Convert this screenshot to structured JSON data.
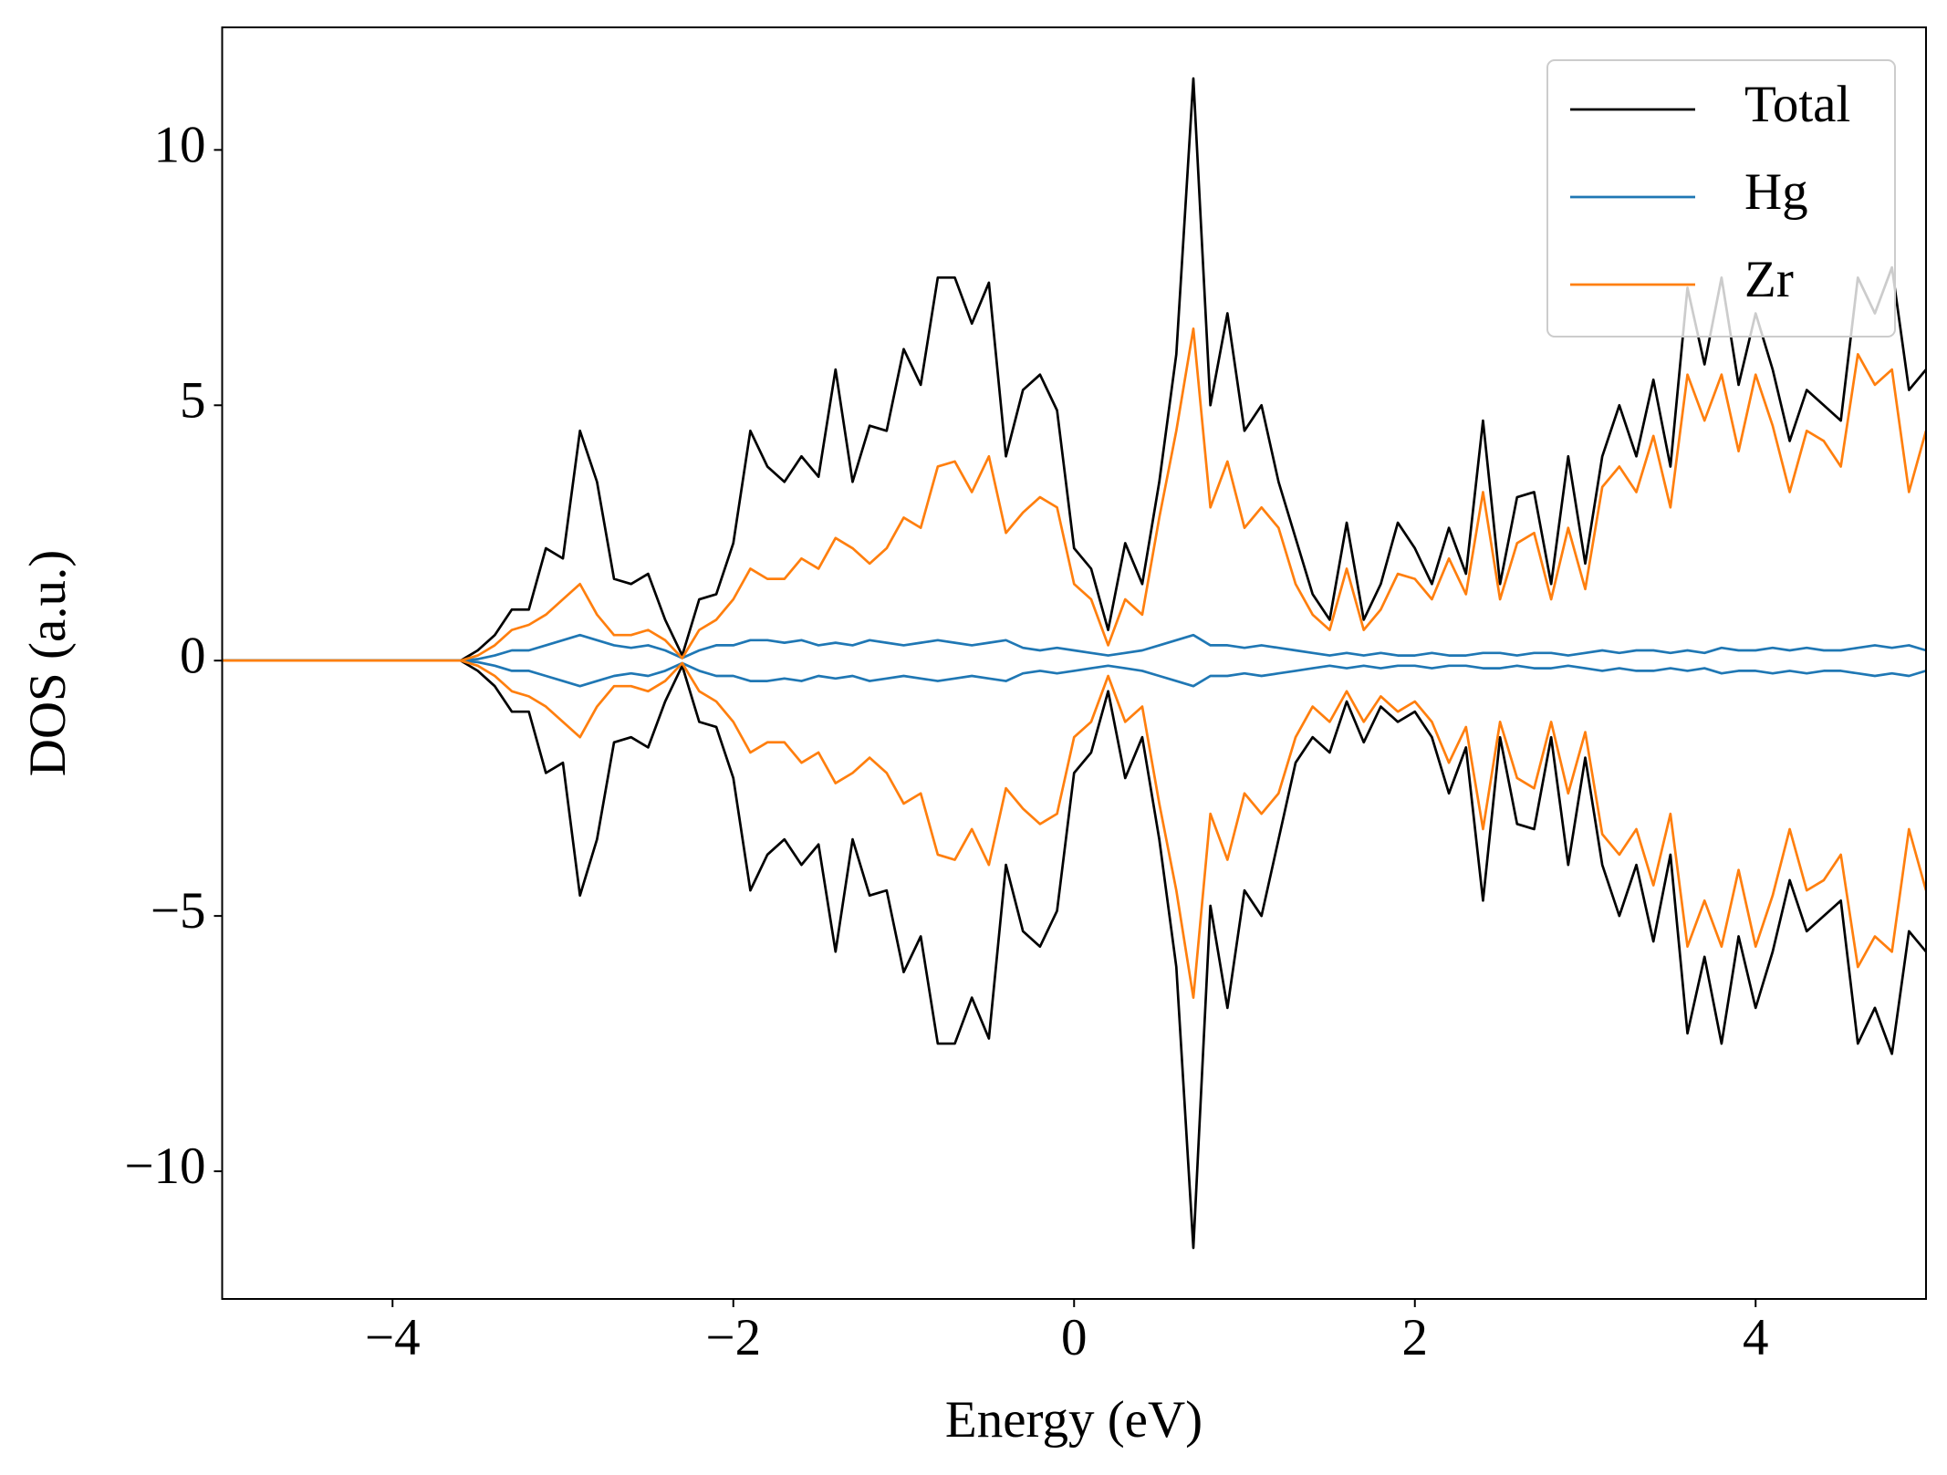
{
  "chart_data": {
    "type": "line",
    "xlabel": "Energy (eV)",
    "ylabel": "DOS (a.u.)",
    "xlim": [
      -5,
      5
    ],
    "ylim": [
      -12.5,
      12.4
    ],
    "xticks": [
      {
        "value": -4,
        "label": "−4"
      },
      {
        "value": -2,
        "label": "−2"
      },
      0,
      2,
      4
    ],
    "yticks": [
      {
        "value": -10,
        "label": "−10"
      },
      {
        "value": -5,
        "label": "−5"
      },
      0,
      5,
      10
    ],
    "legend": "upper right",
    "x": [
      -5.0,
      -4.9,
      -4.8,
      -4.7,
      -4.6,
      -4.5,
      -4.4,
      -4.3,
      -4.2,
      -4.1,
      -4.0,
      -3.9,
      -3.8,
      -3.7,
      -3.6,
      -3.5,
      -3.4,
      -3.3,
      -3.2,
      -3.1,
      -3.0,
      -2.9,
      -2.8,
      -2.7,
      -2.6,
      -2.5,
      -2.4,
      -2.3,
      -2.2,
      -2.1,
      -2.0,
      -1.9,
      -1.8,
      -1.7,
      -1.6,
      -1.5,
      -1.4,
      -1.3,
      -1.2,
      -1.1,
      -1.0,
      -0.9,
      -0.8,
      -0.7,
      -0.6,
      -0.5,
      -0.4,
      -0.3,
      -0.2,
      -0.1,
      0.0,
      0.1,
      0.2,
      0.3,
      0.4,
      0.5,
      0.6,
      0.7,
      0.8,
      0.9,
      1.0,
      1.1,
      1.2,
      1.3,
      1.4,
      1.5,
      1.6,
      1.7,
      1.8,
      1.9,
      2.0,
      2.1,
      2.2,
      2.3,
      2.4,
      2.5,
      2.6,
      2.7,
      2.8,
      2.9,
      3.0,
      3.1,
      3.2,
      3.3,
      3.4,
      3.5,
      3.6,
      3.7,
      3.8,
      3.9,
      4.0,
      4.1,
      4.2,
      4.3,
      4.4,
      4.5,
      4.6,
      4.7,
      4.8,
      4.9,
      5.0
    ],
    "series": [
      {
        "name": "Total",
        "color": "#000000",
        "values": [
          0,
          0,
          0,
          0,
          0,
          0,
          0,
          0,
          0,
          0,
          0,
          0,
          0,
          0,
          0,
          0.2,
          0.5,
          1.0,
          1.0,
          2.2,
          2.0,
          4.5,
          3.5,
          1.6,
          1.5,
          1.7,
          0.8,
          0.1,
          1.2,
          1.3,
          2.3,
          4.5,
          3.8,
          3.5,
          4.0,
          3.6,
          5.7,
          3.5,
          4.6,
          4.5,
          6.1,
          5.4,
          7.5,
          7.5,
          6.6,
          7.4,
          4.0,
          5.3,
          5.6,
          4.9,
          2.2,
          1.8,
          0.6,
          2.3,
          1.5,
          3.5,
          6.0,
          11.4,
          5.0,
          6.8,
          4.5,
          5.0,
          3.5,
          2.4,
          1.3,
          0.8,
          2.7,
          0.8,
          1.5,
          2.7,
          2.2,
          1.5,
          2.6,
          1.7,
          4.7,
          1.5,
          3.2,
          3.3,
          1.5,
          4.0,
          1.9,
          4.0,
          5.0,
          4.0,
          5.5,
          3.8,
          7.3,
          5.8,
          7.5,
          5.4,
          6.8,
          5.7,
          4.3,
          5.3,
          5.0,
          4.7,
          7.5,
          6.8,
          7.7,
          5.3,
          5.7
        ],
        "values_down": [
          0,
          0,
          0,
          0,
          0,
          0,
          0,
          0,
          0,
          0,
          0,
          0,
          0,
          0,
          0,
          -0.2,
          -0.5,
          -1.0,
          -1.0,
          -2.2,
          -2.0,
          -4.6,
          -3.5,
          -1.6,
          -1.5,
          -1.7,
          -0.8,
          -0.1,
          -1.2,
          -1.3,
          -2.3,
          -4.5,
          -3.8,
          -3.5,
          -4.0,
          -3.6,
          -5.7,
          -3.5,
          -4.6,
          -4.5,
          -6.1,
          -5.4,
          -7.5,
          -7.5,
          -6.6,
          -7.4,
          -4.0,
          -5.3,
          -5.6,
          -4.9,
          -2.2,
          -1.8,
          -0.6,
          -2.3,
          -1.5,
          -3.5,
          -6.0,
          -11.5,
          -4.8,
          -6.8,
          -4.5,
          -5.0,
          -3.5,
          -2.0,
          -1.5,
          -1.8,
          -0.8,
          -1.6,
          -0.9,
          -1.2,
          -1.0,
          -1.5,
          -2.6,
          -1.7,
          -4.7,
          -1.5,
          -3.2,
          -3.3,
          -1.5,
          -4.0,
          -1.9,
          -4.0,
          -5.0,
          -4.0,
          -5.5,
          -3.8,
          -7.3,
          -5.8,
          -7.5,
          -5.4,
          -6.8,
          -5.7,
          -4.3,
          -5.3,
          -5.0,
          -4.7,
          -7.5,
          -6.8,
          -7.7,
          -5.3,
          -5.7
        ]
      },
      {
        "name": "Hg",
        "color": "#1f77b4",
        "values": [
          0,
          0,
          0,
          0,
          0,
          0,
          0,
          0,
          0,
          0,
          0,
          0,
          0,
          0,
          0,
          0.03,
          0.1,
          0.2,
          0.2,
          0.3,
          0.4,
          0.5,
          0.4,
          0.3,
          0.25,
          0.3,
          0.2,
          0.05,
          0.2,
          0.3,
          0.3,
          0.4,
          0.4,
          0.35,
          0.4,
          0.3,
          0.35,
          0.3,
          0.4,
          0.35,
          0.3,
          0.35,
          0.4,
          0.35,
          0.3,
          0.35,
          0.4,
          0.25,
          0.2,
          0.25,
          0.2,
          0.15,
          0.1,
          0.15,
          0.2,
          0.3,
          0.4,
          0.5,
          0.3,
          0.3,
          0.25,
          0.3,
          0.25,
          0.2,
          0.15,
          0.1,
          0.15,
          0.1,
          0.15,
          0.1,
          0.1,
          0.15,
          0.1,
          0.1,
          0.15,
          0.15,
          0.1,
          0.15,
          0.15,
          0.1,
          0.15,
          0.2,
          0.15,
          0.2,
          0.2,
          0.15,
          0.2,
          0.15,
          0.25,
          0.2,
          0.2,
          0.25,
          0.2,
          0.25,
          0.2,
          0.2,
          0.25,
          0.3,
          0.25,
          0.3,
          0.2
        ],
        "values_down": [
          0,
          0,
          0,
          0,
          0,
          0,
          0,
          0,
          0,
          0,
          0,
          0,
          0,
          0,
          0,
          -0.03,
          -0.1,
          -0.2,
          -0.2,
          -0.3,
          -0.4,
          -0.5,
          -0.4,
          -0.3,
          -0.25,
          -0.3,
          -0.2,
          -0.05,
          -0.2,
          -0.3,
          -0.3,
          -0.4,
          -0.4,
          -0.35,
          -0.4,
          -0.3,
          -0.35,
          -0.3,
          -0.4,
          -0.35,
          -0.3,
          -0.35,
          -0.4,
          -0.35,
          -0.3,
          -0.35,
          -0.4,
          -0.25,
          -0.2,
          -0.25,
          -0.2,
          -0.15,
          -0.1,
          -0.15,
          -0.2,
          -0.3,
          -0.4,
          -0.5,
          -0.3,
          -0.3,
          -0.25,
          -0.3,
          -0.25,
          -0.2,
          -0.15,
          -0.1,
          -0.15,
          -0.1,
          -0.15,
          -0.1,
          -0.1,
          -0.15,
          -0.1,
          -0.1,
          -0.15,
          -0.15,
          -0.1,
          -0.15,
          -0.15,
          -0.1,
          -0.15,
          -0.2,
          -0.15,
          -0.2,
          -0.2,
          -0.15,
          -0.2,
          -0.15,
          -0.25,
          -0.2,
          -0.2,
          -0.25,
          -0.2,
          -0.25,
          -0.2,
          -0.2,
          -0.25,
          -0.3,
          -0.25,
          -0.3,
          -0.2
        ]
      },
      {
        "name": "Zr",
        "color": "#ff7f0e",
        "values": [
          0,
          0,
          0,
          0,
          0,
          0,
          0,
          0,
          0,
          0,
          0,
          0,
          0,
          0,
          0,
          0.1,
          0.3,
          0.6,
          0.7,
          0.9,
          1.2,
          1.5,
          0.9,
          0.5,
          0.5,
          0.6,
          0.4,
          0.05,
          0.6,
          0.8,
          1.2,
          1.8,
          1.6,
          1.6,
          2.0,
          1.8,
          2.4,
          2.2,
          1.9,
          2.2,
          2.8,
          2.6,
          3.8,
          3.9,
          3.3,
          4.0,
          2.5,
          2.9,
          3.2,
          3.0,
          1.5,
          1.2,
          0.3,
          1.2,
          0.9,
          2.8,
          4.5,
          6.5,
          3.0,
          3.9,
          2.6,
          3.0,
          2.6,
          1.5,
          0.9,
          0.6,
          1.8,
          0.6,
          1.0,
          1.7,
          1.6,
          1.2,
          2.0,
          1.3,
          3.3,
          1.2,
          2.3,
          2.5,
          1.2,
          2.6,
          1.4,
          3.4,
          3.8,
          3.3,
          4.4,
          3.0,
          5.6,
          4.7,
          5.6,
          4.1,
          5.6,
          4.6,
          3.3,
          4.5,
          4.3,
          3.8,
          6.0,
          5.4,
          5.7,
          3.3,
          4.5
        ],
        "values_down": [
          0,
          0,
          0,
          0,
          0,
          0,
          0,
          0,
          0,
          0,
          0,
          0,
          0,
          0,
          0,
          -0.1,
          -0.3,
          -0.6,
          -0.7,
          -0.9,
          -1.2,
          -1.5,
          -0.9,
          -0.5,
          -0.5,
          -0.6,
          -0.4,
          -0.05,
          -0.6,
          -0.8,
          -1.2,
          -1.8,
          -1.6,
          -1.6,
          -2.0,
          -1.8,
          -2.4,
          -2.2,
          -1.9,
          -2.2,
          -2.8,
          -2.6,
          -3.8,
          -3.9,
          -3.3,
          -4.0,
          -2.5,
          -2.9,
          -3.2,
          -3.0,
          -1.5,
          -1.2,
          -0.3,
          -1.2,
          -0.9,
          -2.8,
          -4.5,
          -6.6,
          -3.0,
          -3.9,
          -2.6,
          -3.0,
          -2.6,
          -1.5,
          -0.9,
          -1.2,
          -0.6,
          -1.2,
          -0.7,
          -1.0,
          -0.8,
          -1.2,
          -2.0,
          -1.3,
          -3.3,
          -1.2,
          -2.3,
          -2.5,
          -1.2,
          -2.6,
          -1.4,
          -3.4,
          -3.8,
          -3.3,
          -4.4,
          -3.0,
          -5.6,
          -4.7,
          -5.6,
          -4.1,
          -5.6,
          -4.6,
          -3.3,
          -4.5,
          -4.3,
          -3.8,
          -6.0,
          -5.4,
          -5.7,
          -3.3,
          -4.5
        ]
      }
    ]
  }
}
